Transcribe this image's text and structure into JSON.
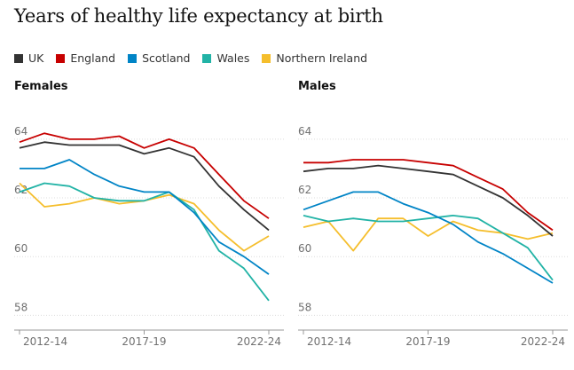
{
  "chart_data": {
    "type": "line",
    "title": "Years of healthy life expectancy at birth",
    "legend": [
      {
        "name": "UK",
        "color": "#333333"
      },
      {
        "name": "England",
        "color": "#c70000"
      },
      {
        "name": "Scotland",
        "color": "#0084c6"
      },
      {
        "name": "Wales",
        "color": "#22b3a6"
      },
      {
        "name": "Northern Ireland",
        "color": "#f5be2c"
      }
    ],
    "legend_position": "top",
    "x_tick_labels": [
      "2012-14",
      "2017-19",
      "2022-24"
    ],
    "y_ticks": [
      58,
      60,
      62,
      64
    ],
    "ylim": [
      57.8,
      64.6
    ],
    "grid": true,
    "panels": [
      {
        "title": "Females",
        "series": [
          {
            "name": "UK",
            "values": [
              63.7,
              63.9,
              63.8,
              63.8,
              63.8,
              63.5,
              63.7,
              63.4,
              62.4,
              61.6,
              60.9
            ]
          },
          {
            "name": "England",
            "values": [
              63.9,
              64.2,
              64.0,
              64.0,
              64.1,
              63.7,
              64.0,
              63.7,
              62.8,
              61.9,
              61.3
            ]
          },
          {
            "name": "Scotland",
            "values": [
              63.0,
              63.0,
              63.3,
              62.8,
              62.4,
              62.2,
              62.2,
              61.5,
              60.5,
              60.0,
              59.4
            ]
          },
          {
            "name": "Wales",
            "values": [
              62.2,
              62.5,
              62.4,
              62.0,
              61.9,
              61.9,
              62.2,
              61.6,
              60.2,
              59.6,
              58.5
            ]
          },
          {
            "name": "Northern Ireland",
            "values": [
              62.5,
              61.7,
              61.8,
              62.0,
              61.8,
              61.9,
              62.1,
              61.8,
              60.9,
              60.2,
              60.7
            ]
          }
        ]
      },
      {
        "title": "Males",
        "series": [
          {
            "name": "UK",
            "values": [
              62.9,
              63.0,
              63.0,
              63.1,
              63.0,
              62.9,
              62.8,
              62.4,
              62.0,
              61.4,
              60.7
            ]
          },
          {
            "name": "England",
            "values": [
              63.2,
              63.2,
              63.3,
              63.3,
              63.3,
              63.2,
              63.1,
              62.7,
              62.3,
              61.5,
              60.9
            ]
          },
          {
            "name": "Scotland",
            "values": [
              61.6,
              61.9,
              62.2,
              62.2,
              61.8,
              61.5,
              61.1,
              60.5,
              60.1,
              59.6,
              59.1
            ]
          },
          {
            "name": "Wales",
            "values": [
              61.4,
              61.2,
              61.3,
              61.2,
              61.2,
              61.3,
              61.4,
              61.3,
              60.8,
              60.3,
              59.2
            ]
          },
          {
            "name": "Northern Ireland",
            "values": [
              61.0,
              61.2,
              60.2,
              61.3,
              61.3,
              60.7,
              61.2,
              60.9,
              60.8,
              60.6,
              60.8
            ]
          }
        ]
      }
    ]
  }
}
